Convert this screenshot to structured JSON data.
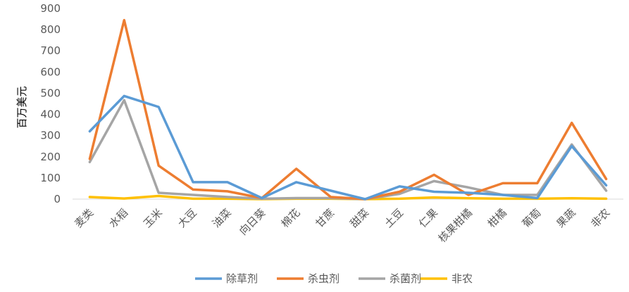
{
  "chart_data": {
    "type": "line",
    "title": "",
    "ylabel": "百万美元",
    "xlabel": "",
    "ylim": [
      0,
      900
    ],
    "yticks": [
      0,
      100,
      200,
      300,
      400,
      500,
      600,
      700,
      800,
      900
    ],
    "grid": false,
    "legend": "bottom",
    "categories": [
      "麦类",
      "水稻",
      "玉米",
      "大豆",
      "油菜",
      "向日葵",
      "棉花",
      "甘蔗",
      "甜菜",
      "土豆",
      "仁果",
      "核果柑橘",
      "柑橘",
      "葡萄",
      "果蔬",
      "非农"
    ],
    "series": [
      {
        "name": "除草剂",
        "color": "#5B9BD5",
        "values": [
          320,
          487,
          435,
          80,
          80,
          5,
          80,
          40,
          0,
          60,
          35,
          30,
          20,
          5,
          250,
          65
        ]
      },
      {
        "name": "杀虫剂",
        "color": "#ED7D31",
        "values": [
          190,
          845,
          158,
          45,
          37,
          5,
          143,
          10,
          0,
          35,
          115,
          20,
          75,
          75,
          360,
          95
        ]
      },
      {
        "name": "杀菌剂",
        "color": "#A5A5A5",
        "values": [
          175,
          467,
          30,
          20,
          10,
          2,
          5,
          5,
          0,
          25,
          85,
          55,
          20,
          20,
          258,
          40
        ]
      },
      {
        "name": "非农",
        "color": "#FFC000",
        "values": [
          10,
          3,
          15,
          2,
          2,
          0,
          2,
          2,
          0,
          2,
          8,
          4,
          2,
          2,
          4,
          2
        ]
      }
    ]
  }
}
